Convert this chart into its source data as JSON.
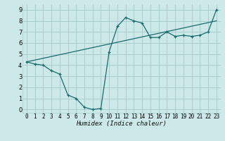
{
  "xlabel": "Humidex (Indice chaleur)",
  "bg_color": "#cce8e8",
  "grid_color": "#aacfcf",
  "line_color": "#1a6b6b",
  "curve1_x": [
    0,
    1,
    2,
    3,
    4,
    5,
    6,
    7,
    8,
    9,
    10,
    11,
    12,
    13,
    14,
    15,
    16,
    17,
    18,
    19,
    20,
    21,
    22,
    23
  ],
  "curve1_y": [
    4.3,
    4.1,
    4.0,
    3.5,
    3.2,
    1.3,
    1.0,
    0.2,
    0.0,
    0.1,
    5.2,
    7.5,
    8.3,
    8.0,
    7.8,
    6.5,
    6.5,
    7.0,
    6.6,
    6.7,
    6.6,
    6.7,
    7.0,
    9.0
  ],
  "curve2_x": [
    0,
    23
  ],
  "curve2_y": [
    4.3,
    8.0
  ],
  "xlim": [
    -0.5,
    23.5
  ],
  "ylim": [
    -0.3,
    9.5
  ],
  "xticks": [
    0,
    1,
    2,
    3,
    4,
    5,
    6,
    7,
    8,
    9,
    10,
    11,
    12,
    13,
    14,
    15,
    16,
    17,
    18,
    19,
    20,
    21,
    22,
    23
  ],
  "yticks": [
    0,
    1,
    2,
    3,
    4,
    5,
    6,
    7,
    8,
    9
  ],
  "xlabel_fontsize": 6.5,
  "tick_fontsize": 5.5
}
